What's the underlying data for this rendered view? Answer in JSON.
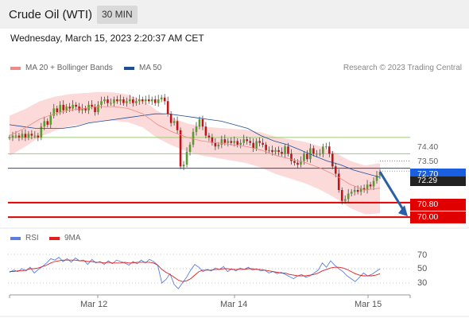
{
  "header": {
    "title": "Crude Oil (WTI)",
    "timeframe": "30 MIN"
  },
  "timestamp": "Wednesday, March 15, 2023 2:20:37 AM CET",
  "legend": {
    "ma20": {
      "label": "MA 20 + Bollinger Bands",
      "color": "#f08a84"
    },
    "ma50": {
      "label": "MA 50",
      "color": "#1f4e96"
    },
    "rsi": {
      "label": "RSI",
      "color": "#5b7fe0"
    },
    "ma9": {
      "label": "9MA",
      "color": "#e02020"
    }
  },
  "credit": "Research © 2023 Trading Central",
  "price_labels": {
    "l7440": "74.40",
    "l7350": "73.50",
    "current": "72.70",
    "ma_value": "72.29",
    "s7080": "70.80",
    "s7000": "70.00"
  },
  "rsi_ticks": [
    "70",
    "50",
    "30"
  ],
  "x_ticks": [
    "Mar 12",
    "Mar 14",
    "Mar 15"
  ],
  "colors": {
    "up": "#5a9a2e",
    "down": "#c0141a",
    "support": "#e00000",
    "resistance": "#9ccb70",
    "pivot": "#1f4e96",
    "band": "#fcdada",
    "arrow": "#2a5fa8",
    "current_tag": "#1a5fe0"
  },
  "chart_data": [
    {
      "type": "candlestick",
      "x_ticks": [
        "Mar 12",
        "Mar 14",
        "Mar 15"
      ],
      "ylim": [
        69.7,
        76.5
      ],
      "horizontal_levels": {
        "resistance": [
          74.4,
          73.5
        ],
        "pivot": 72.7,
        "support": [
          70.8,
          70.0
        ]
      },
      "current_price": 72.7,
      "series": [
        {
          "name": "Crude Oil (WTI)",
          "close": [
            74.4,
            74.5,
            74.5,
            74.4,
            74.6,
            74.4,
            74.6,
            74.5,
            74.5,
            74.4,
            75.0,
            75.3,
            75.1,
            75.6,
            76.0,
            75.8,
            76.2,
            75.9,
            76.1,
            76.0,
            76.2,
            76.1,
            75.9,
            76.0,
            75.9,
            76.2,
            76.1,
            75.8,
            76.2,
            76.4,
            76.5,
            76.3,
            76.3,
            76.5,
            76.4,
            76.5,
            76.3,
            76.4,
            76.5,
            76.3,
            76.4,
            76.5,
            76.4,
            76.5,
            76.4,
            76.5,
            76.3,
            76.5,
            76.6,
            76.4,
            75.7,
            75.2,
            75.3,
            74.8,
            72.8,
            72.9,
            73.6,
            74.0,
            74.7,
            75.0,
            75.4,
            75.0,
            74.5,
            74.4,
            74.1,
            73.9,
            74.0,
            74.3,
            74.1,
            74.2,
            74.1,
            74.2,
            74.0,
            74.1,
            74.3,
            74.2,
            74.1,
            73.8,
            74.2,
            74.1,
            74.0,
            73.7,
            73.7,
            73.6,
            73.7,
            73.6,
            73.5,
            73.9,
            73.5,
            73.1,
            73.0,
            72.9,
            73.1,
            73.5,
            73.2,
            73.8,
            73.5,
            73.5,
            73.5,
            73.9,
            73.9,
            73.5,
            72.8,
            72.4,
            71.5,
            70.9,
            71.0,
            71.3,
            71.4,
            71.5,
            71.4,
            71.6,
            71.5,
            71.8,
            71.7,
            72.0,
            72.3,
            72.5
          ]
        },
        {
          "name": "MA 50",
          "values": [
            75.1,
            75.0,
            74.9,
            74.9,
            74.9,
            75.0,
            75.2,
            75.3,
            75.4,
            75.5,
            75.6,
            75.7,
            75.7,
            75.6,
            75.5,
            75.4,
            75.3,
            75.1,
            74.9,
            74.5,
            74.2,
            74.0,
            73.7,
            73.4,
            73.1,
            72.9,
            72.6,
            72.4,
            72.2
          ]
        },
        {
          "name": "MA 20",
          "values": [
            74.5,
            74.9,
            75.4,
            75.7,
            75.9,
            76.0,
            76.1,
            76.1,
            76.0,
            75.7,
            75.1,
            74.7,
            74.4,
            74.2,
            74.1,
            74.0,
            73.9,
            73.7,
            73.4,
            73.2,
            73.0,
            72.7,
            72.3,
            71.8,
            71.5,
            71.6
          ]
        }
      ]
    },
    {
      "type": "line",
      "title": "RSI",
      "yticks": [
        70,
        50,
        30
      ],
      "series": [
        {
          "name": "RSI",
          "values": [
            45,
            48,
            46,
            50,
            47,
            52,
            44,
            49,
            53,
            58,
            64,
            62,
            66,
            60,
            64,
            59,
            65,
            61,
            62,
            56,
            63,
            58,
            60,
            56,
            61,
            57,
            62,
            60,
            58,
            55,
            60,
            57,
            62,
            58,
            63,
            60,
            55,
            30,
            35,
            43,
            28,
            22,
            30,
            38,
            48,
            56,
            52,
            46,
            49,
            47,
            51,
            49,
            53,
            46,
            50,
            47,
            51,
            49,
            52,
            48,
            50,
            47,
            48,
            44,
            46,
            43,
            45,
            42,
            39,
            36,
            40,
            42,
            38,
            40,
            44,
            48,
            58,
            52,
            61,
            55,
            50,
            46,
            40,
            36,
            32,
            38,
            44,
            40,
            42,
            46,
            50
          ]
        },
        {
          "name": "9MA",
          "values": [
            46,
            46,
            47,
            47,
            48,
            50,
            50,
            51,
            53,
            55,
            58,
            60,
            61,
            62,
            62,
            62,
            62,
            61,
            61,
            60,
            60,
            59,
            59,
            58,
            59,
            58,
            58,
            58,
            59,
            58,
            58,
            59,
            59,
            59,
            59,
            58,
            55,
            49,
            45,
            42,
            38,
            34,
            32,
            33,
            36,
            41,
            46,
            48,
            48,
            48,
            49,
            49,
            50,
            50,
            49,
            49,
            49,
            49,
            50,
            50,
            49,
            49,
            48,
            47,
            46,
            45,
            44,
            44,
            42,
            41,
            40,
            40,
            40,
            41,
            42,
            44,
            47,
            49,
            51,
            52,
            52,
            51,
            49,
            46,
            43,
            41,
            40,
            40,
            40,
            41,
            43
          ]
        }
      ]
    }
  ]
}
